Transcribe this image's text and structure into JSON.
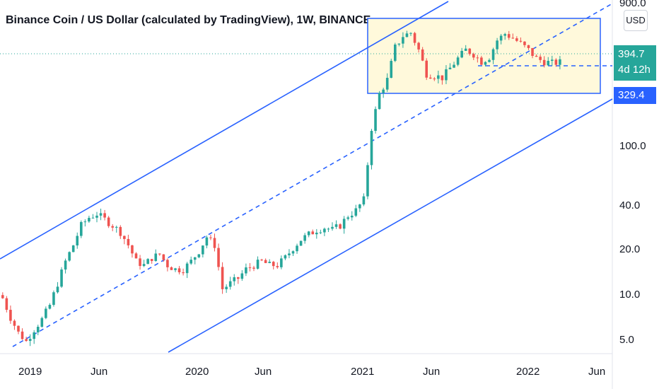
{
  "title": "Binance Coin / US Dollar (calculated by TradingView), 1W, BINANCE",
  "currency_button": "USD",
  "price_labels": {
    "last": "394.7",
    "countdown": "4d 12h",
    "level": "329.4"
  },
  "colors": {
    "up": "#26a69a",
    "down": "#ef5350",
    "channel": "#2962ff",
    "box_fill": "#fff9db",
    "last_label": "#26a69a",
    "level_label": "#2962ff"
  },
  "chart_data": {
    "type": "candlestick",
    "title": "Binance Coin / US Dollar (calculated by TradingView), 1W, BINANCE",
    "y_scale": "log",
    "ylim": [
      4,
      900
    ],
    "y_ticks": [
      {
        "value": 5,
        "label": "5.0"
      },
      {
        "value": 10,
        "label": "10.0"
      },
      {
        "value": 20,
        "label": "20.0"
      },
      {
        "value": 40,
        "label": "40.0"
      },
      {
        "value": 100,
        "label": "100.0"
      },
      {
        "value": 900,
        "label": "900.0"
      }
    ],
    "x_ticks": [
      "2019",
      "Jun",
      "2020",
      "Jun",
      "2021",
      "Jun",
      "2022",
      "Jun"
    ],
    "approx_weekly_close": [
      [
        0,
        9.5
      ],
      [
        2,
        7
      ],
      [
        4,
        5.5
      ],
      [
        6,
        4.8
      ],
      [
        8,
        5.8
      ],
      [
        10,
        6.8
      ],
      [
        12,
        8.5
      ],
      [
        14,
        12
      ],
      [
        16,
        17
      ],
      [
        18,
        22
      ],
      [
        20,
        30
      ],
      [
        22,
        34
      ],
      [
        24,
        36
      ],
      [
        26,
        33
      ],
      [
        28,
        30
      ],
      [
        30,
        27
      ],
      [
        32,
        22
      ],
      [
        34,
        17
      ],
      [
        36,
        16
      ],
      [
        38,
        18
      ],
      [
        40,
        19
      ],
      [
        42,
        16
      ],
      [
        44,
        15
      ],
      [
        46,
        15
      ],
      [
        48,
        17
      ],
      [
        50,
        20
      ],
      [
        52,
        25
      ],
      [
        54,
        22
      ],
      [
        56,
        11
      ],
      [
        58,
        12
      ],
      [
        60,
        13
      ],
      [
        62,
        15
      ],
      [
        64,
        16
      ],
      [
        66,
        17
      ],
      [
        68,
        16
      ],
      [
        70,
        16
      ],
      [
        72,
        18
      ],
      [
        74,
        21
      ],
      [
        76,
        24
      ],
      [
        78,
        26
      ],
      [
        80,
        28
      ],
      [
        82,
        29
      ],
      [
        84,
        28
      ],
      [
        86,
        30
      ],
      [
        88,
        35
      ],
      [
        90,
        38
      ],
      [
        92,
        45
      ],
      [
        94,
        140
      ],
      [
        96,
        240
      ],
      [
        98,
        300
      ],
      [
        100,
        500
      ],
      [
        102,
        600
      ],
      [
        104,
        630
      ],
      [
        106,
        480
      ],
      [
        108,
        330
      ],
      [
        110,
        320
      ],
      [
        112,
        310
      ],
      [
        114,
        360
      ],
      [
        116,
        420
      ],
      [
        118,
        480
      ],
      [
        120,
        450
      ],
      [
        122,
        400
      ],
      [
        124,
        430
      ],
      [
        126,
        560
      ],
      [
        128,
        620
      ],
      [
        130,
        580
      ],
      [
        132,
        530
      ],
      [
        134,
        480
      ],
      [
        136,
        420
      ],
      [
        138,
        400
      ],
      [
        140,
        390
      ],
      [
        142,
        395
      ]
    ],
    "annotations": [
      {
        "type": "parallel_channel",
        "lines": [
          "upper",
          "middle (dashed)",
          "lower"
        ]
      },
      {
        "type": "rectangle",
        "range": [
          329.4,
          800
        ]
      },
      {
        "type": "horizontal_dashed",
        "value": 360
      },
      {
        "type": "horizontal_dotted",
        "value": 394.7
      }
    ]
  }
}
